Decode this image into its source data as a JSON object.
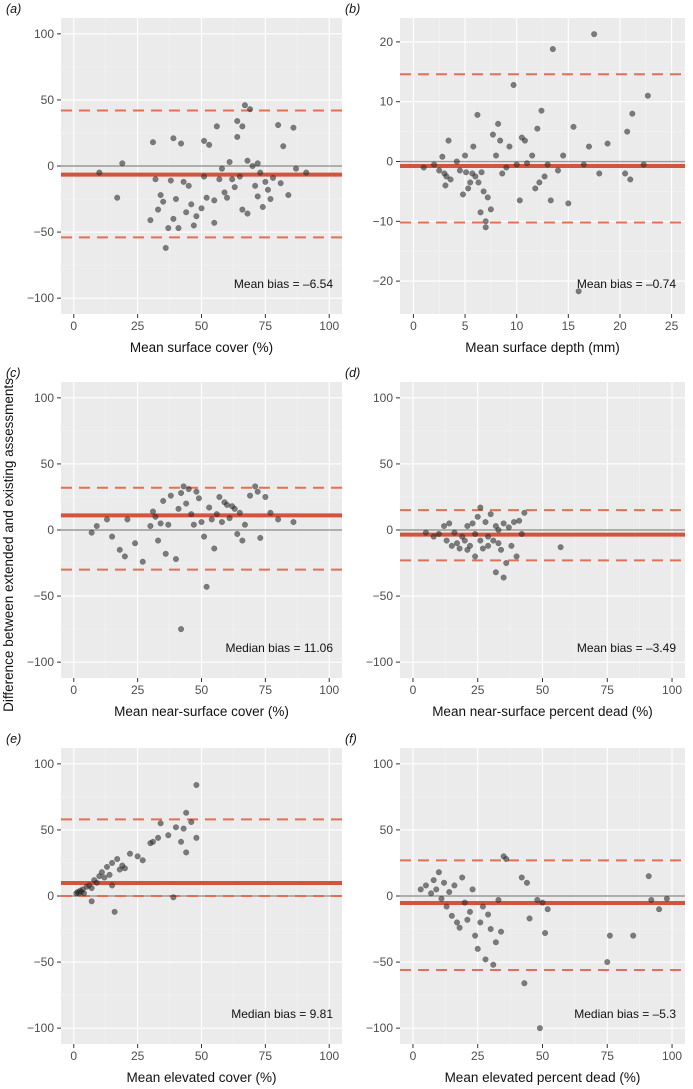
{
  "figure": {
    "y_axis_title": "Difference between extended and existing assessments"
  },
  "chart_data": [
    {
      "type": "scatter",
      "panel": "(a)",
      "xlabel": "Mean surface cover (%)",
      "ylabel": "Difference between extended and existing assessments",
      "xlim": [
        -5,
        105
      ],
      "ylim": [
        -112,
        112
      ],
      "xticks": [
        0,
        25,
        50,
        75,
        100
      ],
      "yticks": [
        -100,
        -50,
        0,
        50,
        100
      ],
      "bias": -6.54,
      "loa_upper": 42,
      "loa_lower": -54,
      "bias_label": "Mean bias = –6.54",
      "points": [
        [
          10,
          -5
        ],
        [
          17,
          -24
        ],
        [
          19,
          2
        ],
        [
          30,
          -41
        ],
        [
          31,
          18
        ],
        [
          32,
          -10
        ],
        [
          33,
          -33
        ],
        [
          34,
          -22
        ],
        [
          35,
          -27
        ],
        [
          36,
          -62
        ],
        [
          37,
          -47
        ],
        [
          38,
          -11
        ],
        [
          39,
          -40
        ],
        [
          39,
          21
        ],
        [
          40,
          -25
        ],
        [
          41,
          -47
        ],
        [
          42,
          17
        ],
        [
          43,
          -12
        ],
        [
          44,
          -35
        ],
        [
          45,
          -15
        ],
        [
          46,
          -29
        ],
        [
          47,
          -45
        ],
        [
          48,
          -38
        ],
        [
          50,
          -32
        ],
        [
          51,
          19
        ],
        [
          51,
          -8
        ],
        [
          52,
          -24
        ],
        [
          53,
          16
        ],
        [
          55,
          -26
        ],
        [
          55,
          -43
        ],
        [
          56,
          30
        ],
        [
          57,
          -10
        ],
        [
          58,
          -2
        ],
        [
          59,
          -20
        ],
        [
          60,
          -24
        ],
        [
          61,
          3
        ],
        [
          62,
          -10
        ],
        [
          63,
          -16
        ],
        [
          64,
          22
        ],
        [
          64,
          34
        ],
        [
          65,
          -8
        ],
        [
          66,
          -33
        ],
        [
          66,
          30
        ],
        [
          67,
          46
        ],
        [
          68,
          -36
        ],
        [
          68,
          4
        ],
        [
          69,
          43
        ],
        [
          70,
          0
        ],
        [
          71,
          -15
        ],
        [
          72,
          -23
        ],
        [
          72,
          2
        ],
        [
          73,
          -5
        ],
        [
          74,
          -31
        ],
        [
          75,
          -12
        ],
        [
          76,
          -18
        ],
        [
          77,
          -25
        ],
        [
          78,
          -9
        ],
        [
          80,
          31
        ],
        [
          81,
          -13
        ],
        [
          82,
          15
        ],
        [
          84,
          -22
        ],
        [
          86,
          29
        ],
        [
          87,
          -2
        ],
        [
          91,
          -5
        ]
      ]
    },
    {
      "type": "scatter",
      "panel": "(b)",
      "xlabel": "Mean surface depth (mm)",
      "ylabel": "Difference between extended and existing assessments",
      "xlim": [
        -1.3,
        26.3
      ],
      "ylim": [
        -25.5,
        24
      ],
      "xticks": [
        0,
        5,
        10,
        15,
        20,
        25
      ],
      "yticks": [
        -20,
        -10,
        0,
        10,
        20
      ],
      "bias": -0.74,
      "loa_upper": 14.6,
      "loa_lower": -10.2,
      "bias_label": "Mean bias = –0.74",
      "points": [
        [
          1,
          -1
        ],
        [
          2,
          -0.5
        ],
        [
          2.5,
          -1.5
        ],
        [
          2.8,
          0.8
        ],
        [
          3,
          -2
        ],
        [
          3.1,
          -4
        ],
        [
          3.2,
          -2.5
        ],
        [
          3.4,
          3.5
        ],
        [
          3.6,
          -3
        ],
        [
          4.2,
          0
        ],
        [
          4.5,
          -1.5
        ],
        [
          4.8,
          -5.5
        ],
        [
          5,
          1
        ],
        [
          5.1,
          -1.8
        ],
        [
          5.3,
          -4.5
        ],
        [
          5.5,
          -3.5
        ],
        [
          5.7,
          -2
        ],
        [
          5.8,
          2.5
        ],
        [
          6,
          -2.5
        ],
        [
          6.2,
          7.8
        ],
        [
          6.3,
          -3.5
        ],
        [
          6.5,
          -8.5
        ],
        [
          6.6,
          -1.8
        ],
        [
          6.8,
          -5
        ],
        [
          7,
          -11
        ],
        [
          7,
          -10
        ],
        [
          7.2,
          -6
        ],
        [
          7.5,
          -8
        ],
        [
          7.7,
          4.5
        ],
        [
          8,
          1
        ],
        [
          8.2,
          6.3
        ],
        [
          8.4,
          3.5
        ],
        [
          8.6,
          -2
        ],
        [
          9,
          -1
        ],
        [
          9.3,
          2.5
        ],
        [
          9.7,
          12.8
        ],
        [
          10,
          -0.5
        ],
        [
          10.3,
          -6.5
        ],
        [
          10.5,
          4
        ],
        [
          10.8,
          3.5
        ],
        [
          11,
          -0.3
        ],
        [
          11.5,
          1
        ],
        [
          11.8,
          -4.5
        ],
        [
          12,
          5.5
        ],
        [
          12.2,
          -3.5
        ],
        [
          12.4,
          8.5
        ],
        [
          12.7,
          -2.5
        ],
        [
          13,
          -0.5
        ],
        [
          13.3,
          -6.5
        ],
        [
          13.5,
          18.8
        ],
        [
          14,
          -1.5
        ],
        [
          14.5,
          1
        ],
        [
          15,
          -7
        ],
        [
          15.5,
          5.8
        ],
        [
          16,
          -21.7
        ],
        [
          16.5,
          -0.5
        ],
        [
          17,
          2.5
        ],
        [
          17.5,
          21.3
        ],
        [
          18,
          -2
        ],
        [
          18.8,
          3
        ],
        [
          20.5,
          -2
        ],
        [
          20.7,
          5
        ],
        [
          21,
          -3
        ],
        [
          21.2,
          8
        ],
        [
          22.3,
          -0.5
        ],
        [
          22.7,
          11
        ]
      ]
    },
    {
      "type": "scatter",
      "panel": "(c)",
      "xlabel": "Mean near-surface cover (%)",
      "ylabel": "Difference between extended and existing assessments",
      "xlim": [
        -5,
        105
      ],
      "ylim": [
        -112,
        112
      ],
      "xticks": [
        0,
        25,
        50,
        75,
        100
      ],
      "yticks": [
        -100,
        -50,
        0,
        50,
        100
      ],
      "bias": 11.06,
      "loa_upper": 32,
      "loa_lower": -30,
      "bias_label": "Median bias = 11.06",
      "points": [
        [
          7,
          -2
        ],
        [
          9,
          3
        ],
        [
          13,
          8
        ],
        [
          15,
          -5
        ],
        [
          18,
          -15
        ],
        [
          20,
          -20
        ],
        [
          21,
          8
        ],
        [
          24,
          -10
        ],
        [
          27,
          -24
        ],
        [
          30,
          3
        ],
        [
          31,
          14
        ],
        [
          32,
          10
        ],
        [
          33,
          -8
        ],
        [
          34,
          5
        ],
        [
          35,
          22
        ],
        [
          36,
          -18
        ],
        [
          37,
          4
        ],
        [
          38,
          26
        ],
        [
          40,
          -22
        ],
        [
          41,
          16
        ],
        [
          42,
          -75
        ],
        [
          42,
          28
        ],
        [
          43,
          33
        ],
        [
          44,
          20
        ],
        [
          45,
          31
        ],
        [
          46,
          12
        ],
        [
          47,
          4
        ],
        [
          48,
          29
        ],
        [
          49,
          24
        ],
        [
          50,
          6
        ],
        [
          51,
          -5
        ],
        [
          52,
          -43
        ],
        [
          53,
          17
        ],
        [
          54,
          8
        ],
        [
          55,
          -14
        ],
        [
          56,
          12
        ],
        [
          57,
          25
        ],
        [
          58,
          6
        ],
        [
          59,
          21
        ],
        [
          60,
          19
        ],
        [
          61,
          9
        ],
        [
          62,
          18
        ],
        [
          63,
          16
        ],
        [
          64,
          -3
        ],
        [
          65,
          13
        ],
        [
          66,
          -8
        ],
        [
          67,
          4
        ],
        [
          69,
          26
        ],
        [
          71,
          33
        ],
        [
          72,
          29
        ],
        [
          73,
          -6
        ],
        [
          75,
          25
        ],
        [
          77,
          13
        ],
        [
          80,
          8
        ],
        [
          86,
          6
        ]
      ]
    },
    {
      "type": "scatter",
      "panel": "(d)",
      "xlabel": "Mean near-surface percent dead (%)",
      "ylabel": "Difference between extended and existing assessments",
      "xlim": [
        -5,
        105
      ],
      "ylim": [
        -112,
        112
      ],
      "xticks": [
        0,
        25,
        50,
        75,
        100
      ],
      "yticks": [
        -100,
        -50,
        0,
        50,
        100
      ],
      "bias": -3.49,
      "loa_upper": 15,
      "loa_lower": -23,
      "bias_label": "Mean bias = –3.49",
      "points": [
        [
          5,
          -2
        ],
        [
          8,
          -5
        ],
        [
          10,
          -3
        ],
        [
          12,
          3
        ],
        [
          13,
          -8
        ],
        [
          14,
          5
        ],
        [
          15,
          -12
        ],
        [
          16,
          -2
        ],
        [
          17,
          -10
        ],
        [
          18,
          -14
        ],
        [
          19,
          -5
        ],
        [
          20,
          -8
        ],
        [
          21,
          -15
        ],
        [
          21,
          3
        ],
        [
          22,
          -12
        ],
        [
          23,
          5
        ],
        [
          24,
          -3
        ],
        [
          24,
          -20
        ],
        [
          25,
          10
        ],
        [
          26,
          -8
        ],
        [
          26,
          17
        ],
        [
          27,
          -14
        ],
        [
          28,
          6
        ],
        [
          29,
          -5
        ],
        [
          29,
          -12
        ],
        [
          30,
          12
        ],
        [
          31,
          -8
        ],
        [
          32,
          3
        ],
        [
          32,
          -32
        ],
        [
          33,
          0
        ],
        [
          33,
          -10
        ],
        [
          34,
          -15
        ],
        [
          35,
          -36
        ],
        [
          35,
          5
        ],
        [
          36,
          -25
        ],
        [
          37,
          2
        ],
        [
          38,
          -12
        ],
        [
          39,
          6
        ],
        [
          40,
          -20
        ],
        [
          41,
          7
        ],
        [
          42,
          -3
        ],
        [
          43,
          13
        ],
        [
          57,
          -13
        ]
      ]
    },
    {
      "type": "scatter",
      "panel": "(e)",
      "xlabel": "Mean elevated cover (%)",
      "ylabel": "Difference between extended and existing assessments",
      "xlim": [
        -5,
        105
      ],
      "ylim": [
        -112,
        112
      ],
      "xticks": [
        0,
        25,
        50,
        75,
        100
      ],
      "yticks": [
        -100,
        -50,
        0,
        50,
        100
      ],
      "bias": 9.81,
      "loa_upper": 58,
      "loa_lower": 0,
      "bias_label": "Median bias = 9.81",
      "points": [
        [
          1,
          2
        ],
        [
          1.5,
          3
        ],
        [
          2,
          2
        ],
        [
          2.5,
          4
        ],
        [
          3,
          3
        ],
        [
          3.5,
          5
        ],
        [
          4,
          2
        ],
        [
          5,
          7
        ],
        [
          6,
          8
        ],
        [
          7,
          -4
        ],
        [
          7,
          6
        ],
        [
          8,
          12
        ],
        [
          9,
          10
        ],
        [
          10,
          15
        ],
        [
          11,
          18
        ],
        [
          12,
          14
        ],
        [
          13,
          22
        ],
        [
          14,
          16
        ],
        [
          15,
          8
        ],
        [
          15,
          25
        ],
        [
          16,
          -12
        ],
        [
          17,
          28
        ],
        [
          18,
          20
        ],
        [
          19,
          23
        ],
        [
          20,
          21
        ],
        [
          22,
          32
        ],
        [
          25,
          30
        ],
        [
          27,
          27
        ],
        [
          30,
          40
        ],
        [
          31,
          41
        ],
        [
          33,
          44
        ],
        [
          34,
          55
        ],
        [
          37,
          46
        ],
        [
          39,
          -1
        ],
        [
          40,
          52
        ],
        [
          42,
          41
        ],
        [
          43,
          51
        ],
        [
          44,
          63
        ],
        [
          44,
          33
        ],
        [
          46,
          56
        ],
        [
          48,
          84
        ],
        [
          48,
          44
        ]
      ]
    },
    {
      "type": "scatter",
      "panel": "(f)",
      "xlabel": "Mean elevated percent dead (%)",
      "ylabel": "Difference between extended and existing assessments",
      "xlim": [
        -5,
        105
      ],
      "ylim": [
        -112,
        112
      ],
      "xticks": [
        0,
        25,
        50,
        75,
        100
      ],
      "yticks": [
        -100,
        -50,
        0,
        50,
        100
      ],
      "bias": -5.3,
      "loa_upper": 27,
      "loa_lower": -56,
      "bias_label": "Median bias = –5.3",
      "points": [
        [
          3,
          5
        ],
        [
          5,
          8
        ],
        [
          7,
          2
        ],
        [
          8,
          12
        ],
        [
          9,
          5
        ],
        [
          10,
          18
        ],
        [
          11,
          -2
        ],
        [
          12,
          10
        ],
        [
          13,
          -8
        ],
        [
          14,
          3
        ],
        [
          15,
          -15
        ],
        [
          16,
          8
        ],
        [
          17,
          -20
        ],
        [
          18,
          -24
        ],
        [
          19,
          14
        ],
        [
          20,
          -5
        ],
        [
          21,
          -18
        ],
        [
          22,
          -12
        ],
        [
          23,
          5
        ],
        [
          24,
          -30
        ],
        [
          25,
          -40
        ],
        [
          26,
          -20
        ],
        [
          27,
          -8
        ],
        [
          28,
          -48
        ],
        [
          29,
          -14
        ],
        [
          30,
          -25
        ],
        [
          31,
          -52
        ],
        [
          32,
          -35
        ],
        [
          33,
          -3
        ],
        [
          34,
          -27
        ],
        [
          35,
          30
        ],
        [
          36,
          28
        ],
        [
          42,
          14
        ],
        [
          43,
          -66
        ],
        [
          44,
          10
        ],
        [
          45,
          -17
        ],
        [
          48,
          -3
        ],
        [
          49,
          -100
        ],
        [
          50,
          -5
        ],
        [
          51,
          -28
        ],
        [
          52,
          -10
        ],
        [
          75,
          -50
        ],
        [
          76,
          -30
        ],
        [
          85,
          -30
        ],
        [
          91,
          15
        ],
        [
          92,
          -3
        ],
        [
          95,
          -10
        ],
        [
          98,
          -2
        ]
      ]
    }
  ]
}
